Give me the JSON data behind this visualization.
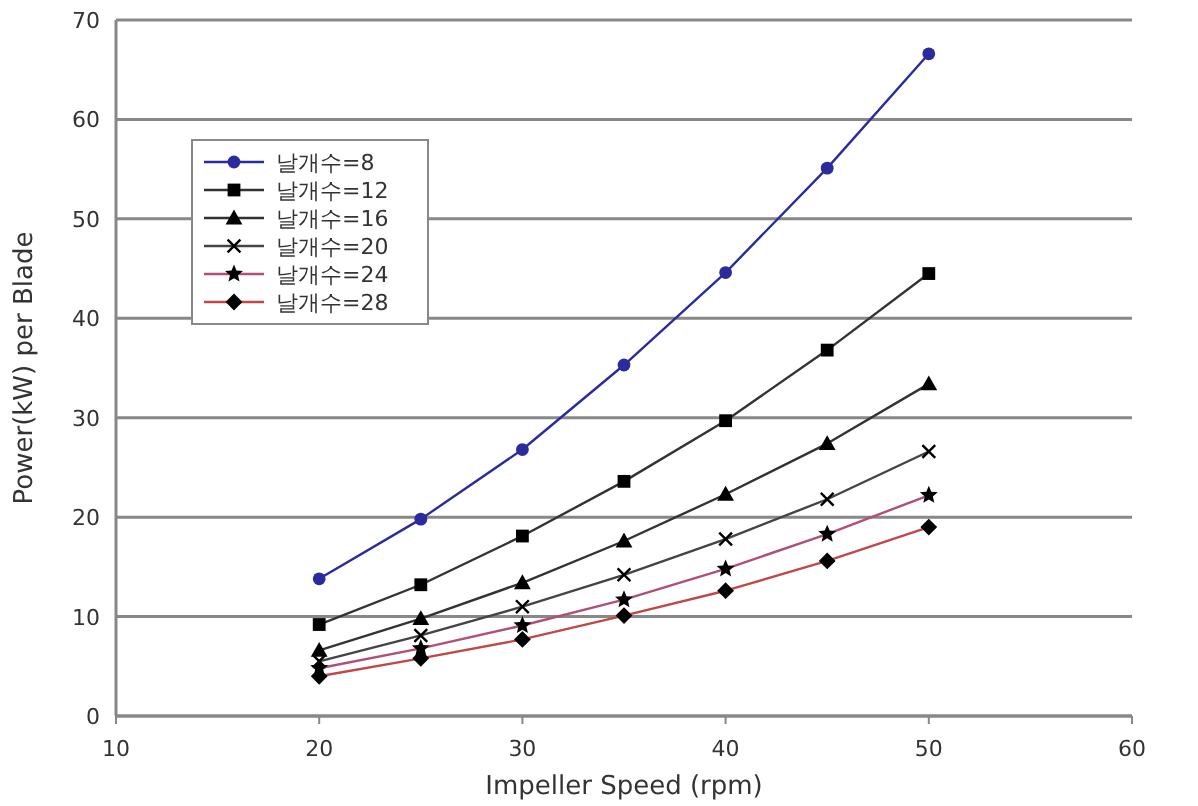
{
  "chart_data": {
    "type": "line",
    "xlabel": "Impeller Speed (rpm)",
    "ylabel": "Power(kW) per Blade",
    "x": [
      20,
      25,
      30,
      35,
      40,
      45,
      50
    ],
    "xlim": [
      10,
      60
    ],
    "xticks": [
      10,
      20,
      30,
      40,
      50,
      60
    ],
    "ylim": [
      0,
      70
    ],
    "yticks": [
      0,
      10,
      20,
      30,
      40,
      50,
      60,
      70
    ],
    "grid": "y",
    "legend": "top left",
    "series": [
      {
        "name": "날개수=8",
        "color": "#2b2b9e",
        "marker": "circle",
        "values": [
          13.8,
          19.8,
          26.8,
          35.3,
          44.6,
          55.1,
          66.6
        ]
      },
      {
        "name": "날개수=12",
        "color": "#333333",
        "marker": "square",
        "values": [
          9.2,
          13.2,
          18.1,
          23.6,
          29.7,
          36.8,
          44.5
        ]
      },
      {
        "name": "날개수=16",
        "color": "#333333",
        "marker": "triangle",
        "values": [
          6.6,
          9.8,
          13.4,
          17.6,
          22.3,
          27.4,
          33.4
        ]
      },
      {
        "name": "날개수=20",
        "color": "#444444",
        "marker": "cross",
        "values": [
          5.5,
          8.1,
          11,
          14.2,
          17.8,
          21.8,
          26.6
        ]
      },
      {
        "name": "날개수=24",
        "color": "#b0507a",
        "marker": "star",
        "values": [
          4.8,
          6.8,
          9.1,
          11.7,
          14.8,
          18.3,
          22.2
        ]
      },
      {
        "name": "날개수=28",
        "color": "#c04848",
        "marker": "diamond",
        "values": [
          4.0,
          5.8,
          7.7,
          10.1,
          12.6,
          15.6,
          19.0
        ]
      }
    ]
  }
}
